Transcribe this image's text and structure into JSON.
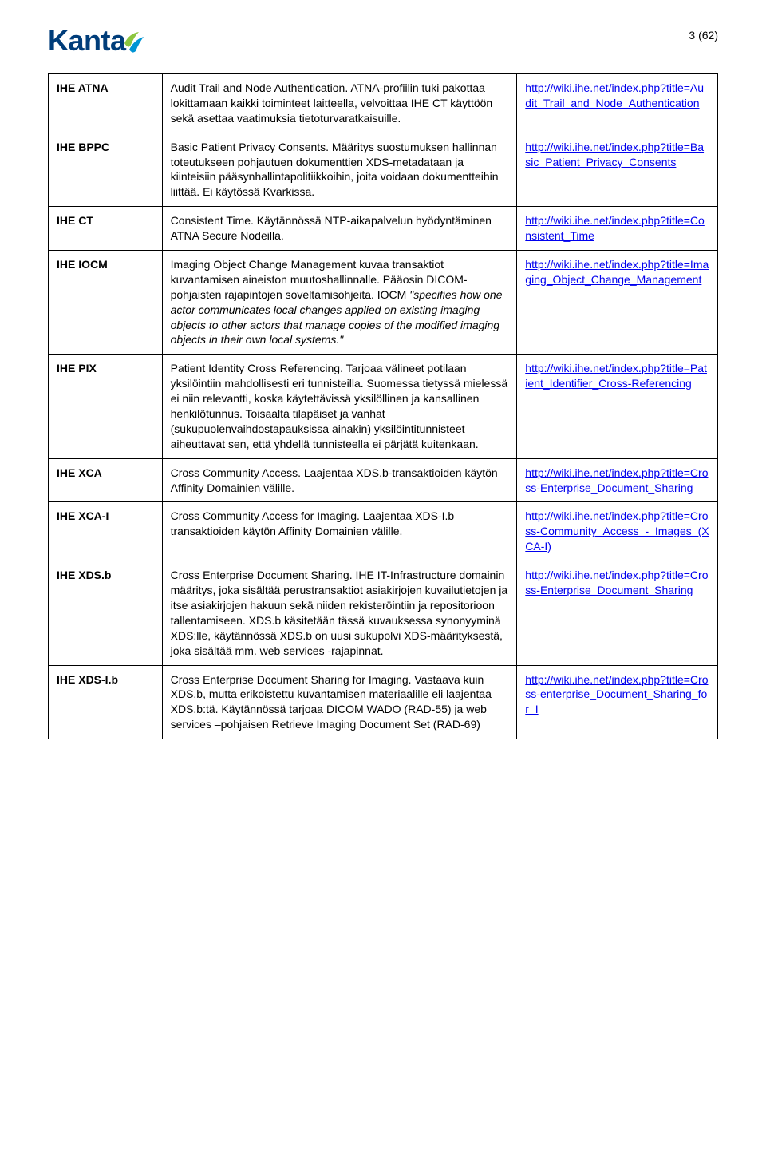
{
  "logo": {
    "text": "Kanta"
  },
  "page_number": "3 (62)",
  "rows": [
    {
      "term": "IHE ATNA",
      "desc_pre": "Audit Trail and Node Authentication. ATNA-profiilin tuki pakottaa lokittamaan kaikki toiminteet laitteella, velvoittaa IHE CT käyttöön sekä asettaa vaatimuksia tietoturvaratkaisuille.",
      "desc_italic": "",
      "desc_post": "",
      "link": "http://wiki.ihe.net/index.php?title=Audit_Trail_and_Node_Authentication"
    },
    {
      "term": "IHE BPPC",
      "desc_pre": "Basic Patient Privacy Consents. Määritys suostumuksen hallinnan toteutukseen pohjautuen dokumenttien XDS-metadataan ja kiinteisiin pääsynhallintapolitiikkoihin, joita voidaan dokumentteihin liittää. Ei käytössä Kvarkissa.",
      "desc_italic": "",
      "desc_post": "",
      "link": "http://wiki.ihe.net/index.php?title=Basic_Patient_Privacy_Consents"
    },
    {
      "term": "IHE CT",
      "desc_pre": "Consistent Time. Käytännössä NTP-aikapalvelun hyödyntäminen ATNA Secure Nodeilla.",
      "desc_italic": "",
      "desc_post": "",
      "link": "http://wiki.ihe.net/index.php?title=Consistent_Time"
    },
    {
      "term": "IHE IOCM",
      "desc_pre": "Imaging Object Change Management kuvaa transaktiot kuvantamisen aineiston muutoshallinnalle. Pääosin DICOM-pohjaisten rajapintojen soveltamisohjeita. IOCM ",
      "desc_italic": "\"specifies how one actor communicates local changes applied on existing imaging objects to other actors that manage copies of the modified imaging objects in their own local systems.\"",
      "desc_post": "",
      "link": "http://wiki.ihe.net/index.php?title=Imaging_Object_Change_Management"
    },
    {
      "term": "IHE PIX",
      "desc_pre": "Patient Identity Cross Referencing. Tarjoaa välineet potilaan yksilöintiin mahdollisesti eri tunnisteilla. Suomessa tietyssä mielessä ei niin relevantti, koska käytettävissä yksilöllinen ja kansallinen henkilötunnus. Toisaalta tilapäiset ja vanhat (sukupuolenvaihdostapauksissa ainakin) yksilöintitunnisteet aiheuttavat sen, että yhdellä tunnisteella ei pärjätä kuitenkaan.",
      "desc_italic": "",
      "desc_post": "",
      "link": "http://wiki.ihe.net/index.php?title=Patient_Identifier_Cross-Referencing"
    },
    {
      "term": "IHE XCA",
      "desc_pre": "Cross Community Access. Laajentaa XDS.b-transaktioiden käytön Affinity Domainien välille.",
      "desc_italic": "",
      "desc_post": "",
      "link": "http://wiki.ihe.net/index.php?title=Cross-Enterprise_Document_Sharing"
    },
    {
      "term": "IHE XCA-I",
      "desc_pre": "Cross Community Access for Imaging. Laajentaa XDS-I.b –transaktioiden käytön Affinity Domainien välille.",
      "desc_italic": "",
      "desc_post": "",
      "link": "http://wiki.ihe.net/index.php?title=Cross-Community_Access_-_Images_(XCA-I)"
    },
    {
      "term": "IHE XDS.b",
      "desc_pre": "Cross Enterprise Document Sharing. IHE IT-Infrastructure domainin määritys, joka sisältää perustransaktiot asiakirjojen kuvailutietojen ja itse asiakirjojen hakuun sekä niiden rekisteröintiin ja repositorioon tallentamiseen. XDS.b käsitetään tässä kuvauksessa synonyyminä XDS:lle, käytännössä XDS.b on uusi sukupolvi XDS-määrityksestä, joka sisältää mm. web services -rajapinnat.",
      "desc_italic": "",
      "desc_post": "",
      "link": "http://wiki.ihe.net/index.php?title=Cross-Enterprise_Document_Sharing"
    },
    {
      "term": "IHE XDS-I.b",
      "desc_pre": "Cross Enterprise Document Sharing for Imaging. Vastaava kuin XDS.b, mutta erikoistettu kuvantamisen materiaalille eli laajentaa XDS.b:tä. Käytännössä tarjoaa DICOM WADO (RAD-55) ja web services –pohjaisen Retrieve Imaging Document Set (RAD-69)",
      "desc_italic": "",
      "desc_post": "",
      "link": "http://wiki.ihe.net/index.php?title=Cross-enterprise_Document_Sharing_for_I"
    }
  ]
}
